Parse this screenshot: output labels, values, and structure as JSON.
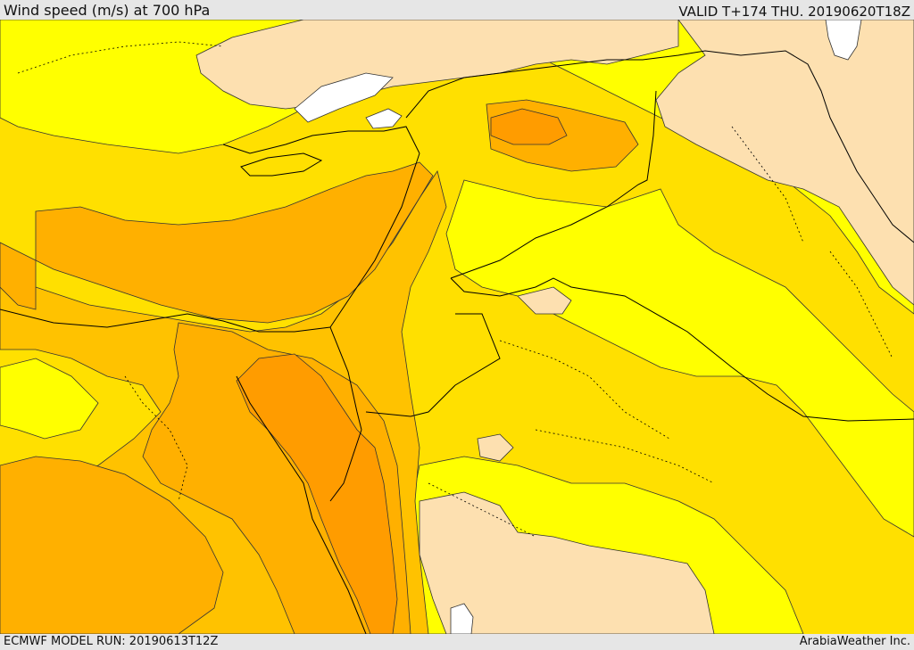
{
  "header": {
    "title": "Wind speed (m/s) at 700 hPa",
    "valid": "VALID T+174 THU. 20190620T18Z"
  },
  "footer": {
    "model_run": "ECMWF MODEL RUN: 20190613T12Z",
    "credit": "ArabiaWeather Inc."
  },
  "map": {
    "field": "wind_speed_700hPa",
    "palette": {
      "band_white": "#ffffff",
      "band_peach": "#fde0b0",
      "band_yellow": "#ffff00",
      "band_gold": "#ffe000",
      "band_amber": "#ffc200",
      "band_orange": "#ffb000",
      "band_dark_orange": "#ff9c00",
      "contour_line": "#333333",
      "border_line": "#000000"
    }
  }
}
